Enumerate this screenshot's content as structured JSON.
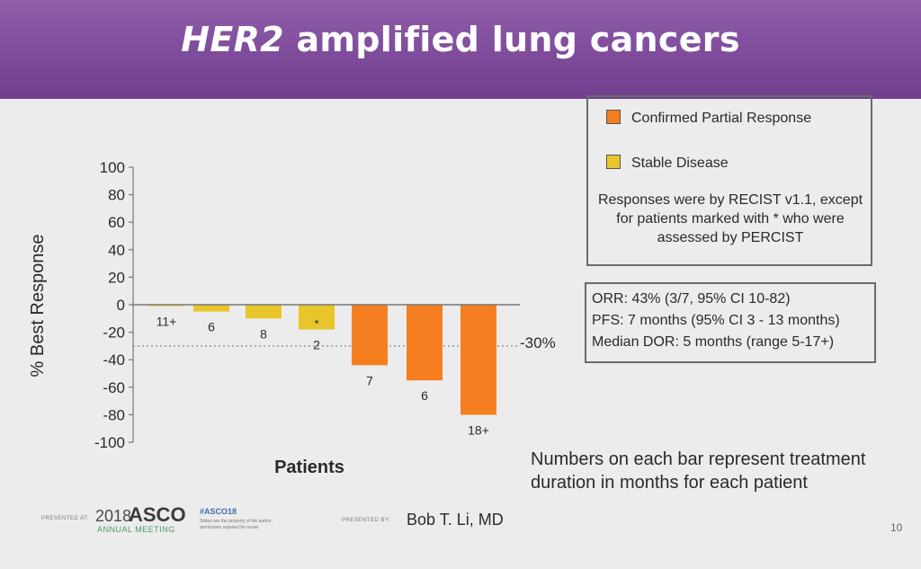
{
  "slide": {
    "title_italic": "HER2",
    "title_rest": " amplified lung cancers",
    "page_number": "10"
  },
  "legend": {
    "items": [
      {
        "label": "Confirmed Partial Response",
        "color": "#f57f20"
      },
      {
        "label": "Stable Disease",
        "color": "#e8c52a"
      }
    ],
    "note": "Responses were by RECIST v1.1, except for patients marked with * who were assessed by PERCIST"
  },
  "stats": {
    "orr": "ORR: 43% (3/7, 95% CI 10-82)",
    "pfs": "PFS: 7 months (95% CI 3 - 13 months)",
    "dor": "Median DOR: 5 months (range 5-17+)"
  },
  "caption": "Numbers on each bar represent treatment duration in months for each patient",
  "footer": {
    "presented_at": "PRESENTED AT:",
    "year": "2018",
    "asco": "ASCO",
    "annual": "ANNUAL MEETING",
    "hashtag": "#ASCO18",
    "fine_print_1": "Slides are the property of the author,",
    "fine_print_2": "permission required for reuse.",
    "presented_by": "PRESENTED BY:",
    "author": "Bob T. Li, MD"
  },
  "chart_data": {
    "type": "bar",
    "title": "",
    "xlabel": "Patients",
    "ylabel": "% Best Response",
    "ylim": [
      -100,
      100
    ],
    "yticks": [
      100,
      80,
      60,
      40,
      20,
      0,
      -20,
      -40,
      -60,
      -80,
      -100
    ],
    "grid": false,
    "legend_position": "top-right",
    "reference_line": {
      "value": -30,
      "label": "-30%"
    },
    "bars": [
      {
        "value": -1,
        "label": "11+",
        "response": "Stable Disease",
        "marker": ""
      },
      {
        "value": -5,
        "label": "6",
        "response": "Stable Disease",
        "marker": ""
      },
      {
        "value": -10,
        "label": "8",
        "response": "Stable Disease",
        "marker": ""
      },
      {
        "value": -18,
        "label": "2",
        "response": "Stable Disease",
        "marker": "*"
      },
      {
        "value": -44,
        "label": "7",
        "response": "Confirmed Partial Response",
        "marker": ""
      },
      {
        "value": -55,
        "label": "6",
        "response": "Confirmed Partial Response",
        "marker": ""
      },
      {
        "value": -80,
        "label": "18+",
        "response": "Confirmed Partial Response",
        "marker": ""
      }
    ]
  }
}
